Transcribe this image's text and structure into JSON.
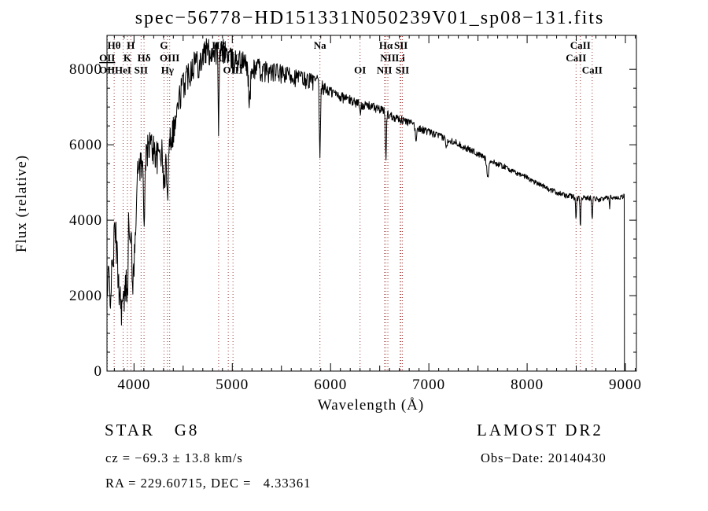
{
  "title": "spec−56778−HD151331N050239V01_sp08−131.fits",
  "annotations": {
    "class_label": "STAR   G8",
    "survey": "LAMOST DR2",
    "cz": "cz = −69.3 ± 13.8 km/s",
    "obs_date": "Obs−Date: 20140430",
    "ra_dec": "RA = 229.60715, DEC =   4.33361"
  },
  "chart_data": {
    "type": "line",
    "title": "spec−56778−HD151331N050239V01_sp08−131.fits",
    "xlabel": "Wavelength (Å)",
    "ylabel": "Flux (relative)",
    "xlim": [
      3725,
      9112
    ],
    "ylim": [
      0,
      8900
    ],
    "grid": false,
    "line_color": "#000000",
    "marker_line_color": "#9e3a3a",
    "x_axis": {
      "ticks": [
        4000,
        5000,
        6000,
        7000,
        8000,
        9000
      ],
      "minor_step": 100,
      "medium_step": 500
    },
    "y_axis": {
      "ticks": [
        0,
        2000,
        4000,
        6000,
        8000
      ],
      "minor_step": 500
    },
    "line_markers": [
      {
        "label": "OII",
        "wavelength": 3727,
        "row": 2,
        "underline": true
      },
      {
        "label": "OII",
        "wavelength": 3727,
        "row": 3
      },
      {
        "label": "Hθ",
        "wavelength": 3798,
        "row": 1
      },
      {
        "label": "HeI",
        "wavelength": 3889,
        "row": 3
      },
      {
        "label": "K",
        "wavelength": 3933,
        "row": 2
      },
      {
        "label": "H",
        "wavelength": 3968,
        "row": 1
      },
      {
        "label": "SII",
        "wavelength": 4072,
        "row": 3
      },
      {
        "label": "Hδ",
        "wavelength": 4102,
        "row": 2
      },
      {
        "label": "G",
        "wavelength": 4305,
        "row": 1
      },
      {
        "label": "Hγ",
        "wavelength": 4340,
        "row": 3
      },
      {
        "label": "OIII",
        "wavelength": 4363,
        "row": 2
      },
      {
        "label": "Hβ",
        "wavelength": 4861,
        "row": 1
      },
      {
        "label": "OIII",
        "wavelength": 4959,
        "row": 2
      },
      {
        "label": "OIII",
        "wavelength": 5007,
        "row": 3
      },
      {
        "label": "Na",
        "wavelength": 5892,
        "row": 1
      },
      {
        "label": "OI",
        "wavelength": 6300,
        "row": 3
      },
      {
        "label": "NII",
        "wavelength": 6548,
        "row": 3
      },
      {
        "label": "Hα",
        "wavelength": 6563,
        "row": 1
      },
      {
        "label": "NII",
        "wavelength": 6583,
        "row": 2
      },
      {
        "label": "Li",
        "wavelength": 6708,
        "row": 2
      },
      {
        "label": "SII",
        "wavelength": 6716,
        "row": 1
      },
      {
        "label": "SII",
        "wavelength": 6731,
        "row": 3
      },
      {
        "label": "CaII",
        "wavelength": 8498,
        "row": 2
      },
      {
        "label": "CaII",
        "wavelength": 8542,
        "row": 1
      },
      {
        "label": "CaII",
        "wavelength": 8662,
        "row": 3
      }
    ],
    "series": {
      "name": "spectrum",
      "wl_start": 3728,
      "wl_end": 8990,
      "sample_step": 4,
      "end_drop_to_zero": true,
      "envelope_points": [
        [
          3728,
          1900
        ],
        [
          3740,
          2600
        ],
        [
          3755,
          2200
        ],
        [
          3770,
          2400
        ],
        [
          3785,
          3000
        ],
        [
          3800,
          3600
        ],
        [
          3815,
          3700
        ],
        [
          3830,
          2900
        ],
        [
          3845,
          2400
        ],
        [
          3860,
          2000
        ],
        [
          3875,
          1800
        ],
        [
          3890,
          1750
        ],
        [
          3905,
          2000
        ],
        [
          3920,
          2400
        ],
        [
          3935,
          3100
        ],
        [
          3948,
          4200
        ],
        [
          3958,
          3200
        ],
        [
          3970,
          4300
        ],
        [
          3982,
          2600
        ],
        [
          3995,
          2400
        ],
        [
          4010,
          3600
        ],
        [
          4025,
          4800
        ],
        [
          4045,
          5500
        ],
        [
          4065,
          5600
        ],
        [
          4085,
          5400
        ],
        [
          4110,
          5300
        ],
        [
          4130,
          5800
        ],
        [
          4155,
          6100
        ],
        [
          4180,
          6000
        ],
        [
          4210,
          5900
        ],
        [
          4240,
          5700
        ],
        [
          4270,
          5900
        ],
        [
          4300,
          5700
        ],
        [
          4330,
          5600
        ],
        [
          4360,
          6200
        ],
        [
          4390,
          6400
        ],
        [
          4420,
          6600
        ],
        [
          4450,
          7100
        ],
        [
          4480,
          7500
        ],
        [
          4510,
          7700
        ],
        [
          4540,
          7900
        ],
        [
          4570,
          8000
        ],
        [
          4600,
          8200
        ],
        [
          4630,
          8300
        ],
        [
          4660,
          8200
        ],
        [
          4690,
          8350
        ],
        [
          4720,
          8500
        ],
        [
          4750,
          8550
        ],
        [
          4780,
          8450
        ],
        [
          4810,
          8550
        ],
        [
          4840,
          8500
        ],
        [
          4870,
          8400
        ],
        [
          4900,
          8550
        ],
        [
          4930,
          8500
        ],
        [
          4960,
          8400
        ],
        [
          4990,
          8300
        ],
        [
          5020,
          8250
        ],
        [
          5060,
          8300
        ],
        [
          5100,
          8250
        ],
        [
          5140,
          8150
        ],
        [
          5180,
          7900
        ],
        [
          5220,
          8050
        ],
        [
          5260,
          8100
        ],
        [
          5300,
          7950
        ],
        [
          5340,
          8000
        ],
        [
          5380,
          7950
        ],
        [
          5420,
          7950
        ],
        [
          5460,
          7950
        ],
        [
          5500,
          7900
        ],
        [
          5540,
          7850
        ],
        [
          5580,
          7900
        ],
        [
          5620,
          7850
        ],
        [
          5660,
          7800
        ],
        [
          5700,
          7800
        ],
        [
          5740,
          7750
        ],
        [
          5780,
          7750
        ],
        [
          5820,
          7700
        ],
        [
          5860,
          7700
        ],
        [
          5900,
          7600
        ],
        [
          5940,
          7500
        ],
        [
          5980,
          7450
        ],
        [
          6020,
          7400
        ],
        [
          6060,
          7350
        ],
        [
          6100,
          7300
        ],
        [
          6150,
          7250
        ],
        [
          6200,
          7200
        ],
        [
          6250,
          7150
        ],
        [
          6300,
          7100
        ],
        [
          6350,
          7050
        ],
        [
          6400,
          7050
        ],
        [
          6450,
          7000
        ],
        [
          6500,
          6950
        ],
        [
          6550,
          6900
        ],
        [
          6600,
          6800
        ],
        [
          6650,
          6750
        ],
        [
          6700,
          6700
        ],
        [
          6750,
          6650
        ],
        [
          6800,
          6600
        ],
        [
          6850,
          6550
        ],
        [
          6900,
          6450
        ],
        [
          6950,
          6400
        ],
        [
          7000,
          6350
        ],
        [
          7050,
          6300
        ],
        [
          7100,
          6250
        ],
        [
          7150,
          6200
        ],
        [
          7200,
          6150
        ],
        [
          7250,
          6100
        ],
        [
          7300,
          6050
        ],
        [
          7350,
          5950
        ],
        [
          7400,
          5900
        ],
        [
          7450,
          5850
        ],
        [
          7500,
          5750
        ],
        [
          7550,
          5700
        ],
        [
          7600,
          5600
        ],
        [
          7650,
          5550
        ],
        [
          7700,
          5500
        ],
        [
          7750,
          5450
        ],
        [
          7800,
          5400
        ],
        [
          7850,
          5300
        ],
        [
          7900,
          5250
        ],
        [
          7950,
          5200
        ],
        [
          8000,
          5150
        ],
        [
          8050,
          5050
        ],
        [
          8100,
          5000
        ],
        [
          8150,
          4950
        ],
        [
          8200,
          4850
        ],
        [
          8250,
          4800
        ],
        [
          8300,
          4750
        ],
        [
          8350,
          4700
        ],
        [
          8400,
          4650
        ],
        [
          8450,
          4650
        ],
        [
          8500,
          4600
        ],
        [
          8550,
          4600
        ],
        [
          8600,
          4600
        ],
        [
          8650,
          4600
        ],
        [
          8700,
          4580
        ],
        [
          8750,
          4550
        ],
        [
          8800,
          4600
        ],
        [
          8850,
          4620
        ],
        [
          8900,
          4600
        ],
        [
          8950,
          4620
        ],
        [
          8990,
          4650
        ]
      ],
      "absorption_features": [
        {
          "center": 3933,
          "sigma": 4,
          "depth": 800
        },
        {
          "center": 3968,
          "sigma": 4,
          "depth": 700
        },
        {
          "center": 4102,
          "sigma": 5,
          "depth": 1300
        },
        {
          "center": 4305,
          "sigma": 8,
          "depth": 800
        },
        {
          "center": 4340,
          "sigma": 5,
          "depth": 1400
        },
        {
          "center": 4861,
          "sigma": 5,
          "depth": 1900
        },
        {
          "center": 5175,
          "sigma": 8,
          "depth": 800
        },
        {
          "center": 5892,
          "sigma": 6,
          "depth": 1900
        },
        {
          "center": 6300,
          "sigma": 4,
          "depth": 300
        },
        {
          "center": 6563,
          "sigma": 5,
          "depth": 1300
        },
        {
          "center": 6870,
          "sigma": 8,
          "depth": 350
        },
        {
          "center": 7180,
          "sigma": 7,
          "depth": 250
        },
        {
          "center": 7600,
          "sigma": 10,
          "depth": 400
        },
        {
          "center": 8498,
          "sigma": 4,
          "depth": 600
        },
        {
          "center": 8542,
          "sigma": 4,
          "depth": 750
        },
        {
          "center": 8662,
          "sigma": 4,
          "depth": 550
        },
        {
          "center": 8840,
          "sigma": 3,
          "depth": 250
        }
      ],
      "noise_profile": [
        [
          3728,
          550
        ],
        [
          3900,
          500
        ],
        [
          4000,
          450
        ],
        [
          4300,
          420
        ],
        [
          4600,
          380
        ],
        [
          4900,
          330
        ],
        [
          5200,
          280
        ],
        [
          5500,
          250
        ],
        [
          5800,
          220
        ],
        [
          6000,
          150
        ],
        [
          6300,
          120
        ],
        [
          6600,
          110
        ],
        [
          7000,
          90
        ],
        [
          7500,
          80
        ],
        [
          8000,
          65
        ],
        [
          8500,
          70
        ],
        [
          8990,
          60
        ]
      ]
    }
  }
}
